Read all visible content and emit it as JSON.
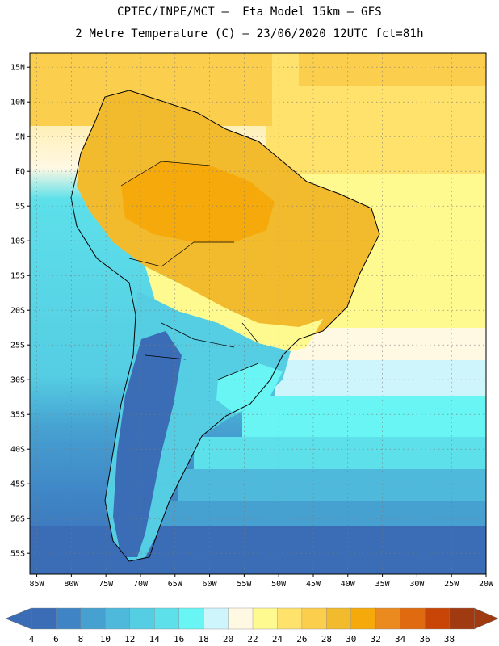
{
  "header": {
    "line1": "CPTEC/INPE/MCT –  Eta Model 15km – GFS",
    "line2": "2 Metre Temperature (C) – 23/06/2020 12UTC fct=81h"
  },
  "map": {
    "extent": {
      "lon": [
        -86,
        -20
      ],
      "lat": [
        -58,
        17
      ]
    },
    "lat_ticks": [
      {
        "value": 15,
        "label": "15N"
      },
      {
        "value": 10,
        "label": "10N"
      },
      {
        "value": 5,
        "label": "5N"
      },
      {
        "value": 0,
        "label": "EQ"
      },
      {
        "value": -5,
        "label": "5S"
      },
      {
        "value": -10,
        "label": "10S"
      },
      {
        "value": -15,
        "label": "15S"
      },
      {
        "value": -20,
        "label": "20S"
      },
      {
        "value": -25,
        "label": "25S"
      },
      {
        "value": -30,
        "label": "30S"
      },
      {
        "value": -35,
        "label": "35S"
      },
      {
        "value": -40,
        "label": "40S"
      },
      {
        "value": -45,
        "label": "45S"
      },
      {
        "value": -50,
        "label": "50S"
      },
      {
        "value": -55,
        "label": "55S"
      }
    ],
    "lon_ticks": [
      {
        "value": -85,
        "label": "85W"
      },
      {
        "value": -80,
        "label": "80W"
      },
      {
        "value": -75,
        "label": "75W"
      },
      {
        "value": -70,
        "label": "70W"
      },
      {
        "value": -65,
        "label": "65W"
      },
      {
        "value": -60,
        "label": "60W"
      },
      {
        "value": -55,
        "label": "55W"
      },
      {
        "value": -50,
        "label": "50W"
      },
      {
        "value": -45,
        "label": "45W"
      },
      {
        "value": -40,
        "label": "40W"
      },
      {
        "value": -35,
        "label": "35W"
      },
      {
        "value": -30,
        "label": "30W"
      },
      {
        "value": -25,
        "label": "25W"
      },
      {
        "value": -20,
        "label": "20W"
      }
    ]
  },
  "colorbar": {
    "colors": [
      "#3a6db5",
      "#3f85c6",
      "#46a1d1",
      "#4fb9dc",
      "#55cde3",
      "#5de0ea",
      "#6af5f5",
      "#cff5fc",
      "#fff8e3",
      "#fffa90",
      "#fee26c",
      "#fbcf4d",
      "#f2bb2d",
      "#f5a90a",
      "#eb8a1f",
      "#e06a10",
      "#c94507",
      "#a03a10"
    ],
    "labels": [
      "4",
      "6",
      "8",
      "10",
      "12",
      "14",
      "16",
      "18",
      "20",
      "22",
      "24",
      "26",
      "28",
      "30",
      "32",
      "34",
      "36",
      "38"
    ]
  }
}
